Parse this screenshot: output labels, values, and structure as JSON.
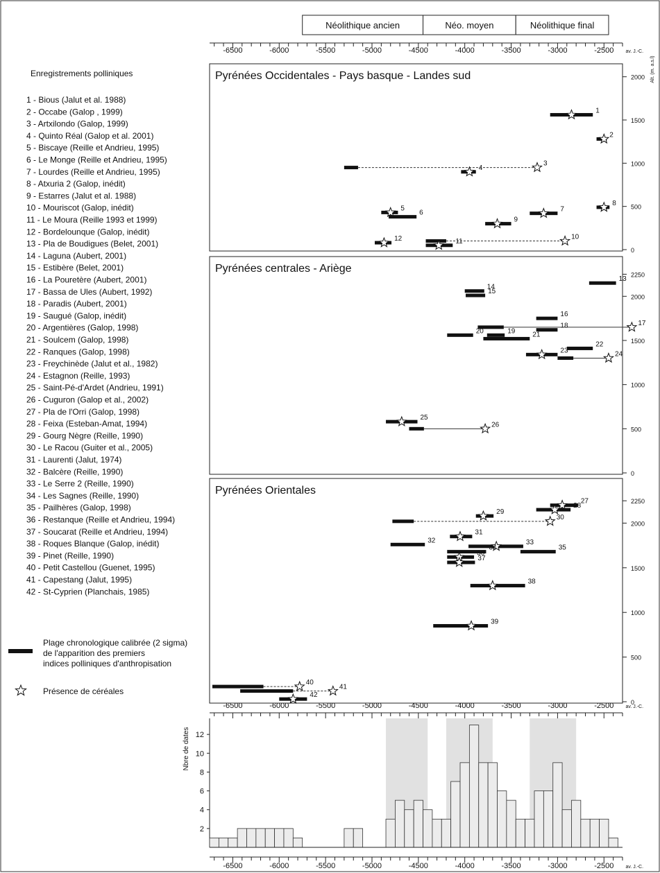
{
  "periods": [
    {
      "label": "Néolithique ancien",
      "from": -5750,
      "to": -4450
    },
    {
      "label": "Néo. moyen",
      "from": -4450,
      "to": -3450
    },
    {
      "label": "Néolithique final",
      "from": -3450,
      "to": -2450
    }
  ],
  "x_axis": {
    "unit_label": "av. J.-C.",
    "min": -6750,
    "max": -2300,
    "ticks": [
      -6500,
      -6000,
      -5500,
      -5000,
      -4500,
      -4000,
      -3500,
      -3000,
      -2500
    ]
  },
  "alt_label": "Alt. (m. a.s.l)",
  "list_title": "Enregistrements polliniques",
  "sites": [
    "1 - Bious (Jalut et al. 1988)",
    "2 - Occabe (Galop , 1999)",
    "3 - Artxilondo (Galop, 1999)",
    "4 - Quinto Réal (Galop et al. 2001)",
    "5 - Biscaye (Reille et Andrieu, 1995)",
    "6 - Le Monge (Reille et Andrieu, 1995)",
    "7 - Lourdes (Reille et Andrieu, 1995)",
    "8 - Atxuria 2 (Galop, inédit)",
    "9 - Estarres (Jalut et al. 1988)",
    "10 - Mouriscot (Galop, inédit)",
    "11 - Le Moura (Reille 1993 et 1999)",
    "12 - Bordelounque (Galop, inédit)",
    "13 - Pla de Boudigues (Belet, 2001)",
    "14 - Laguna (Aubert, 2001)",
    "15 - Estibère (Belet, 2001)",
    "16 - La Pouretère (Aubert, 2001)",
    "17 - Bassa de Ules (Aubert, 1992)",
    "18 - Paradis (Aubert, 2001)",
    "19 - Saugué (Galop, inédit)",
    "20 - Argentières (Galop, 1998)",
    "21 - Soulcem (Galop, 1998)",
    "22 - Ranques (Galop, 1998)",
    "23 - Freychinède (Jalut et al., 1982)",
    "24 - Estagnon (Reille, 1993)",
    "25 - Saint-Pé-d'Ardet (Andrieu, 1991)",
    "26 - Cuguron (Galop et al., 2002)",
    "27 - Pla de l'Orri (Galop, 1998)",
    "28 - Feixa (Esteban-Amat, 1994)",
    "29 - Gourg Nègre (Reille, 1990)",
    "30 - Le Racou (Guiter et al., 2005)",
    "31 - Laurenti (Jalut, 1974)",
    "32 - Balcère (Reille, 1990)",
    "33 - Le Serre 2 (Reille, 1990)",
    "34 - Les Sagnes (Reille, 1990)",
    "35 - Pailhères (Galop, 1998)",
    "36 - Restanque (Reille et Andrieu, 1994)",
    "37 - Soucarat (Reille et Andrieu, 1994)",
    "38 - Roques Blanque (Galop, inédit)",
    "39 - Pinet (Reille, 1990)",
    "40 - Petit Castellou (Guenet, 1995)",
    "41 - Capestang (Jalut, 1995)",
    "42 - St-Cyprien (Planchais, 1985)"
  ],
  "legend": {
    "bar_lines": [
      "Plage chronologique calibrée (2 sigma)",
      "de l'apparition des premiers",
      "indices polliniques d'anthropisation"
    ],
    "star": "Présence de céréales"
  },
  "chart_data": [
    {
      "type": "range",
      "title": "Pyrénées Occidentales - Pays basque - Landes sud",
      "ylim": [
        0,
        2150
      ],
      "yticks": [
        0,
        500,
        1000,
        1500,
        2000
      ],
      "records": [
        {
          "id": "1",
          "alt": 1560,
          "from": -3080,
          "to": -2620,
          "cereal": -2850,
          "dash": false
        },
        {
          "id": "2",
          "alt": 1280,
          "from": -2580,
          "to": -2470,
          "cereal": -2500,
          "dash": false
        },
        {
          "id": "3",
          "alt": 950,
          "from": -5300,
          "to": -5150,
          "cereal": -3220,
          "dash": true
        },
        {
          "id": "4",
          "alt": 900,
          "from": -4040,
          "to": -3880,
          "cereal": -3950,
          "dash": false
        },
        {
          "id": "5",
          "alt": 430,
          "from": -4900,
          "to": -4720,
          "cereal": -4800,
          "dash": false
        },
        {
          "id": "6",
          "alt": 380,
          "from": -4820,
          "to": -4520,
          "cereal": null,
          "dash": false
        },
        {
          "id": "7",
          "alt": 420,
          "from": -3300,
          "to": -3000,
          "cereal": -3150,
          "dash": false
        },
        {
          "id": "8",
          "alt": 490,
          "from": -2580,
          "to": -2440,
          "cereal": -2500,
          "dash": false
        },
        {
          "id": "9",
          "alt": 300,
          "from": -3780,
          "to": -3500,
          "cereal": -3650,
          "dash": false
        },
        {
          "id": "10",
          "alt": 100,
          "from": -4420,
          "to": -4200,
          "cereal": -2920,
          "dash": true
        },
        {
          "id": "11",
          "alt": 50,
          "from": -4420,
          "to": -4130,
          "cereal": -4280,
          "dash": false
        },
        {
          "id": "12",
          "alt": 80,
          "from": -4970,
          "to": -4790,
          "cereal": -4870,
          "dash": false
        }
      ]
    },
    {
      "type": "range",
      "title": "Pyrénées centrales - Ariège",
      "ylim": [
        0,
        2450
      ],
      "yticks": [
        0,
        500,
        1000,
        1500,
        2000,
        2250
      ],
      "records": [
        {
          "id": "13",
          "alt": 2150,
          "from": -2660,
          "to": -2370,
          "cereal": null,
          "dash": false
        },
        {
          "id": "14",
          "alt": 2060,
          "from": -4000,
          "to": -3790,
          "cereal": null,
          "dash": false
        },
        {
          "id": "15",
          "alt": 2010,
          "from": -3990,
          "to": -3780,
          "cereal": null,
          "dash": false
        },
        {
          "id": "16",
          "alt": 1750,
          "from": -3230,
          "to": -3000,
          "cereal": null,
          "dash": false
        },
        {
          "id": "17",
          "alt": 1650,
          "from": -3860,
          "to": -3580,
          "cereal": -2200,
          "dash": false
        },
        {
          "id": "18",
          "alt": 1620,
          "from": -3230,
          "to": -3000,
          "cereal": null,
          "dash": false
        },
        {
          "id": "19",
          "alt": 1560,
          "from": -3760,
          "to": -3570,
          "cereal": null,
          "dash": false
        },
        {
          "id": "20",
          "alt": 1560,
          "from": -4190,
          "to": -3910,
          "cereal": null,
          "dash": false
        },
        {
          "id": "21",
          "alt": 1520,
          "from": -3800,
          "to": -3300,
          "cereal": null,
          "dash": false
        },
        {
          "id": "22",
          "alt": 1410,
          "from": -2900,
          "to": -2620,
          "cereal": null,
          "dash": false
        },
        {
          "id": "23",
          "alt": 1340,
          "from": -3340,
          "to": -3000,
          "cereal": -3170,
          "dash": false
        },
        {
          "id": "24",
          "alt": 1300,
          "from": -3000,
          "to": -2830,
          "cereal": -2450,
          "dash": false
        },
        {
          "id": "25",
          "alt": 580,
          "from": -4850,
          "to": -4510,
          "cereal": -4680,
          "dash": false
        },
        {
          "id": "26",
          "alt": 500,
          "from": -4600,
          "to": -4440,
          "cereal": -3780,
          "dash": false
        }
      ]
    },
    {
      "type": "range",
      "title": "Pyrénées Orientales",
      "ylim": [
        0,
        2500
      ],
      "yticks": [
        0,
        500,
        1000,
        1500,
        2000,
        2250
      ],
      "records": [
        {
          "id": "27",
          "alt": 2200,
          "from": -3080,
          "to": -2780,
          "cereal": -2950,
          "dash": false
        },
        {
          "id": "28",
          "alt": 2150,
          "from": -3230,
          "to": -2860,
          "cereal": -3030,
          "dash": false
        },
        {
          "id": "29",
          "alt": 2080,
          "from": -3880,
          "to": -3690,
          "cereal": -3800,
          "dash": false
        },
        {
          "id": "30",
          "alt": 2020,
          "from": -4780,
          "to": -4550,
          "cereal": -3080,
          "dash": true
        },
        {
          "id": "31",
          "alt": 1850,
          "from": -4160,
          "to": -3920,
          "cereal": -4050,
          "dash": false
        },
        {
          "id": "32",
          "alt": 1760,
          "from": -4800,
          "to": -4430,
          "cereal": null,
          "dash": false
        },
        {
          "id": "33",
          "alt": 1740,
          "from": -3960,
          "to": -3370,
          "cereal": -3660,
          "dash": false
        },
        {
          "id": "34",
          "alt": 1680,
          "from": -4190,
          "to": -3770,
          "cereal": null,
          "dash": false
        },
        {
          "id": "35",
          "alt": 1680,
          "from": -3400,
          "to": -3020,
          "cereal": null,
          "dash": false
        },
        {
          "id": "36",
          "alt": 1620,
          "from": -4190,
          "to": -3900,
          "cereal": -4060,
          "dash": false
        },
        {
          "id": "37",
          "alt": 1560,
          "from": -4190,
          "to": -3890,
          "cereal": -4060,
          "dash": false
        },
        {
          "id": "38",
          "alt": 1300,
          "from": -3940,
          "to": -3350,
          "cereal": -3700,
          "dash": false
        },
        {
          "id": "39",
          "alt": 850,
          "from": -4340,
          "to": -3750,
          "cereal": -3930,
          "dash": false
        },
        {
          "id": "40",
          "alt": 170,
          "from": -6720,
          "to": -6170,
          "cereal": -5780,
          "dash": true
        },
        {
          "id": "41",
          "alt": 120,
          "from": -6420,
          "to": -5850,
          "cereal": -5420,
          "dash": true
        },
        {
          "id": "42",
          "alt": 30,
          "from": -6000,
          "to": -5700,
          "cereal": -5850,
          "dash": false
        }
      ]
    },
    {
      "type": "histogram",
      "ylabel": "Nbre de dates",
      "ylim": [
        0,
        14
      ],
      "yticks": [
        2,
        4,
        6,
        8,
        10,
        12
      ],
      "bin_width": 100,
      "shaded_ranges": [
        [
          -4850,
          -4400
        ],
        [
          -4200,
          -3700
        ],
        [
          -3300,
          -2800
        ]
      ],
      "bins": [
        {
          "x": -6750,
          "count": 1
        },
        {
          "x": -6650,
          "count": 1
        },
        {
          "x": -6550,
          "count": 1
        },
        {
          "x": -6450,
          "count": 2
        },
        {
          "x": -6350,
          "count": 2
        },
        {
          "x": -6250,
          "count": 2
        },
        {
          "x": -6150,
          "count": 2
        },
        {
          "x": -6050,
          "count": 2
        },
        {
          "x": -5950,
          "count": 2
        },
        {
          "x": -5850,
          "count": 1
        },
        {
          "x": -5300,
          "count": 2
        },
        {
          "x": -5200,
          "count": 2
        },
        {
          "x": -4850,
          "count": 3
        },
        {
          "x": -4750,
          "count": 5
        },
        {
          "x": -4650,
          "count": 4
        },
        {
          "x": -4550,
          "count": 5
        },
        {
          "x": -4450,
          "count": 4
        },
        {
          "x": -4350,
          "count": 3
        },
        {
          "x": -4250,
          "count": 3
        },
        {
          "x": -4150,
          "count": 7
        },
        {
          "x": -4050,
          "count": 9
        },
        {
          "x": -3950,
          "count": 13
        },
        {
          "x": -3850,
          "count": 9
        },
        {
          "x": -3750,
          "count": 9
        },
        {
          "x": -3650,
          "count": 6
        },
        {
          "x": -3550,
          "count": 5
        },
        {
          "x": -3450,
          "count": 3
        },
        {
          "x": -3350,
          "count": 3
        },
        {
          "x": -3250,
          "count": 6
        },
        {
          "x": -3150,
          "count": 6
        },
        {
          "x": -3050,
          "count": 9
        },
        {
          "x": -2950,
          "count": 4
        },
        {
          "x": -2850,
          "count": 5
        },
        {
          "x": -2750,
          "count": 3
        },
        {
          "x": -2650,
          "count": 3
        },
        {
          "x": -2550,
          "count": 3
        },
        {
          "x": -2450,
          "count": 1
        }
      ]
    }
  ]
}
